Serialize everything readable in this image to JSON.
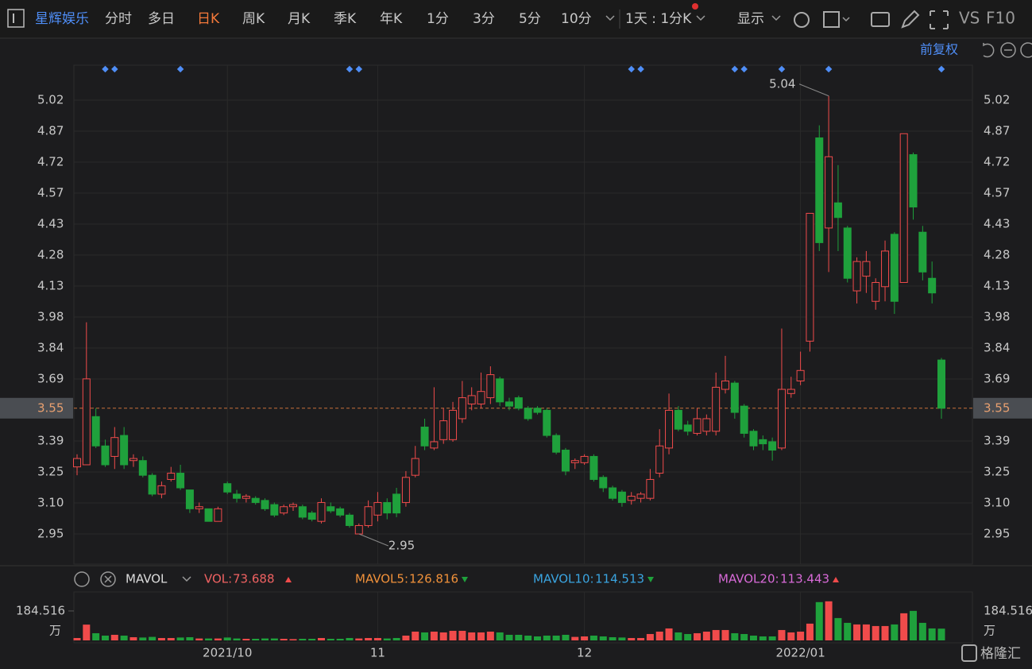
{
  "toolbar": {
    "stock": "星辉娱乐",
    "tabs": [
      "分时",
      "多日",
      "日K",
      "周K",
      "月K",
      "季K",
      "年K",
      "1分",
      "3分",
      "5分",
      "10分"
    ],
    "active_tab": 2,
    "period": "1天 : 1分K",
    "display": "显示",
    "vs": "VS",
    "f10": "F10"
  },
  "adjust": "前复权",
  "chart_data": {
    "type": "candlestick",
    "categories": [
      null,
      null,
      null,
      null,
      null,
      null,
      null,
      null,
      null,
      null,
      null,
      null,
      null,
      null,
      null,
      null,
      "2021/10",
      null,
      null,
      null,
      null,
      null,
      null,
      null,
      null,
      null,
      null,
      null,
      null,
      null,
      null,
      null,
      "11",
      null,
      null,
      null,
      null,
      null,
      null,
      null,
      null,
      null,
      null,
      null,
      null,
      null,
      null,
      null,
      null,
      null,
      null,
      null,
      null,
      null,
      "12",
      null,
      null,
      null,
      null,
      null,
      null,
      null,
      null,
      null,
      null,
      null,
      null,
      null,
      null,
      null,
      null,
      null,
      null,
      null,
      null,
      null,
      null,
      "2022/01",
      null,
      null,
      null,
      null,
      null,
      null,
      null,
      null,
      null,
      null,
      null,
      null,
      null,
      null,
      null
    ],
    "open": [
      3.27,
      3.28,
      3.51,
      3.37,
      3.32,
      3.42,
      3.3,
      3.3,
      3.23,
      3.14,
      3.21,
      3.24,
      3.16,
      3.07,
      3.07,
      3.01,
      3.19,
      3.14,
      3.12,
      3.12,
      3.11,
      3.09,
      3.05,
      3.08,
      3.08,
      3.05,
      3.01,
      3.08,
      3.07,
      3.04,
      2.95,
      2.99,
      3.04,
      3.1,
      3.14,
      3.1,
      3.23,
      3.46,
      3.36,
      3.4,
      3.4,
      3.5,
      3.57,
      3.57,
      3.6,
      3.69,
      3.58,
      3.6,
      3.55,
      3.55,
      3.54,
      3.42,
      3.35,
      3.29,
      3.29,
      3.32,
      3.22,
      3.17,
      3.15,
      3.11,
      3.12,
      3.12,
      3.24,
      3.36,
      3.54,
      3.47,
      3.43,
      3.44,
      3.44,
      3.64,
      3.67,
      3.56,
      3.44,
      3.4,
      3.39,
      3.36,
      3.62,
      3.68,
      3.87,
      4.84,
      4.41,
      4.53,
      4.41,
      4.11,
      4.18,
      4.06,
      4.13,
      4.38,
      4.15,
      4.76,
      4.39,
      4.17,
      3.78
    ],
    "close": [
      3.31,
      3.69,
      3.37,
      3.28,
      3.41,
      3.28,
      3.31,
      3.23,
      3.14,
      3.18,
      3.24,
      3.17,
      3.07,
      3.08,
      3.01,
      3.07,
      3.15,
      3.12,
      3.13,
      3.1,
      3.07,
      3.04,
      3.08,
      3.09,
      3.03,
      3.02,
      3.1,
      3.06,
      3.04,
      2.99,
      2.99,
      3.08,
      3.1,
      3.05,
      3.05,
      3.22,
      3.31,
      3.37,
      3.39,
      3.49,
      3.54,
      3.6,
      3.61,
      3.63,
      3.71,
      3.58,
      3.56,
      3.55,
      3.5,
      3.53,
      3.42,
      3.34,
      3.25,
      3.3,
      3.32,
      3.21,
      3.17,
      3.12,
      3.1,
      3.13,
      3.14,
      3.21,
      3.37,
      3.54,
      3.45,
      3.44,
      3.5,
      3.5,
      3.65,
      3.68,
      3.53,
      3.43,
      3.37,
      3.38,
      3.35,
      3.64,
      3.64,
      3.73,
      4.48,
      4.34,
      4.75,
      4.46,
      4.17,
      4.25,
      4.25,
      4.15,
      4.3,
      4.06,
      4.86,
      4.51,
      4.2,
      4.1,
      3.55
    ],
    "high": [
      3.33,
      3.96,
      3.55,
      3.4,
      3.46,
      3.46,
      3.33,
      3.32,
      3.24,
      3.2,
      3.27,
      3.28,
      3.16,
      3.1,
      3.07,
      3.08,
      3.2,
      3.16,
      3.14,
      3.13,
      3.12,
      3.1,
      3.09,
      3.1,
      3.09,
      3.06,
      3.12,
      3.1,
      3.08,
      3.05,
      3.0,
      3.11,
      3.15,
      3.12,
      3.17,
      3.25,
      3.37,
      3.5,
      3.65,
      3.55,
      3.58,
      3.68,
      3.65,
      3.72,
      3.75,
      3.7,
      3.6,
      3.61,
      3.56,
      3.56,
      3.55,
      3.43,
      3.36,
      3.31,
      3.33,
      3.33,
      3.23,
      3.18,
      3.16,
      3.15,
      3.15,
      3.26,
      3.45,
      3.62,
      3.56,
      3.49,
      3.55,
      3.52,
      3.72,
      3.8,
      3.68,
      3.57,
      3.45,
      3.42,
      3.41,
      3.93,
      3.7,
      3.82,
      4.48,
      4.9,
      5.04,
      4.71,
      4.42,
      4.27,
      4.3,
      4.17,
      4.35,
      4.39,
      4.86,
      4.77,
      4.42,
      4.25,
      3.79
    ],
    "low": [
      3.23,
      3.28,
      3.36,
      3.27,
      3.26,
      3.26,
      3.27,
      3.22,
      3.13,
      3.12,
      3.2,
      3.16,
      3.05,
      3.05,
      3.01,
      3.01,
      3.14,
      3.1,
      3.1,
      3.09,
      3.06,
      3.03,
      3.04,
      3.06,
      3.02,
      3.01,
      3.0,
      3.05,
      3.03,
      2.98,
      2.95,
      2.98,
      3.01,
      3.02,
      3.03,
      3.08,
      3.22,
      3.35,
      3.35,
      3.38,
      3.39,
      3.48,
      3.54,
      3.55,
      3.57,
      3.56,
      3.54,
      3.54,
      3.49,
      3.52,
      3.41,
      3.33,
      3.23,
      3.26,
      3.28,
      3.2,
      3.15,
      3.11,
      3.08,
      3.09,
      3.1,
      3.11,
      3.22,
      3.33,
      3.44,
      3.42,
      3.42,
      3.42,
      3.42,
      3.62,
      3.5,
      3.41,
      3.35,
      3.35,
      3.3,
      3.35,
      3.6,
      3.66,
      3.82,
      4.3,
      4.2,
      4.3,
      4.15,
      4.05,
      4.1,
      4.02,
      4.06,
      4.0,
      4.15,
      4.45,
      4.16,
      4.05,
      3.5
    ],
    "ylim": [
      2.806,
      5.187
    ],
    "yticks": [
      {
        "value": 2.95,
        "label": "2.95"
      },
      {
        "value": 3.0979,
        "label": "3.10"
      },
      {
        "value": 3.2457,
        "label": "3.25"
      },
      {
        "value": 3.3936,
        "label": "3.39"
      },
      {
        "value": 3.6893,
        "label": "3.69"
      },
      {
        "value": 3.8371,
        "label": "3.84"
      },
      {
        "value": 3.985,
        "label": "3.98"
      },
      {
        "value": 4.1329,
        "label": "4.13"
      },
      {
        "value": 4.2807,
        "label": "4.28"
      },
      {
        "value": 4.4286,
        "label": "4.43"
      },
      {
        "value": 4.5764,
        "label": "4.57"
      },
      {
        "value": 4.7243,
        "label": "4.72"
      },
      {
        "value": 4.8721,
        "label": "4.87"
      },
      {
        "value": 5.02,
        "label": "5.02"
      }
    ],
    "last_price": 3.55,
    "up_color": "#f04b4b",
    "down_color": "#1fa13c",
    "grid": true,
    "annotations": [
      {
        "value": 5.04,
        "index": 80
      },
      {
        "value": 2.95,
        "index": 30
      }
    ],
    "event_markers": [
      3,
      4,
      11,
      29,
      30,
      59,
      60,
      70,
      71,
      75,
      80,
      92
    ]
  },
  "volume": {
    "type": "bar",
    "indicator": "MAVOL",
    "values": [
      15,
      99,
      45,
      30,
      35,
      30,
      20,
      18,
      22,
      15,
      15,
      18,
      20,
      12,
      12,
      12,
      18,
      12,
      10,
      10,
      12,
      12,
      10,
      8,
      10,
      10,
      15,
      10,
      10,
      15,
      12,
      15,
      15,
      12,
      15,
      30,
      55,
      50,
      55,
      50,
      60,
      60,
      50,
      50,
      55,
      50,
      35,
      35,
      30,
      25,
      30,
      30,
      35,
      22,
      25,
      30,
      25,
      20,
      18,
      15,
      15,
      40,
      55,
      75,
      50,
      40,
      45,
      55,
      65,
      65,
      45,
      40,
      30,
      25,
      25,
      65,
      50,
      55,
      105,
      240,
      245,
      140,
      110,
      100,
      100,
      90,
      90,
      100,
      170,
      185,
      110,
      75,
      73.688
    ],
    "ylim": [
      0,
      254
    ],
    "yticks": [
      {
        "value": 184.516,
        "label": "184.516"
      }
    ],
    "unit": "万",
    "legend": [
      {
        "name": "VOL:",
        "value": 73.688,
        "color": "#f06262",
        "trend": "up"
      },
      {
        "name": "MAVOL5:",
        "value": 126.816,
        "color": "#f0913a",
        "trend": "down"
      },
      {
        "name": "MAVOL10:",
        "value": 114.513,
        "color": "#3aa4e0",
        "trend": "down"
      },
      {
        "name": "MAVOL20:",
        "value": 113.443,
        "color": "#d86ad8",
        "trend": "up"
      }
    ]
  },
  "watermark": "格隆汇"
}
